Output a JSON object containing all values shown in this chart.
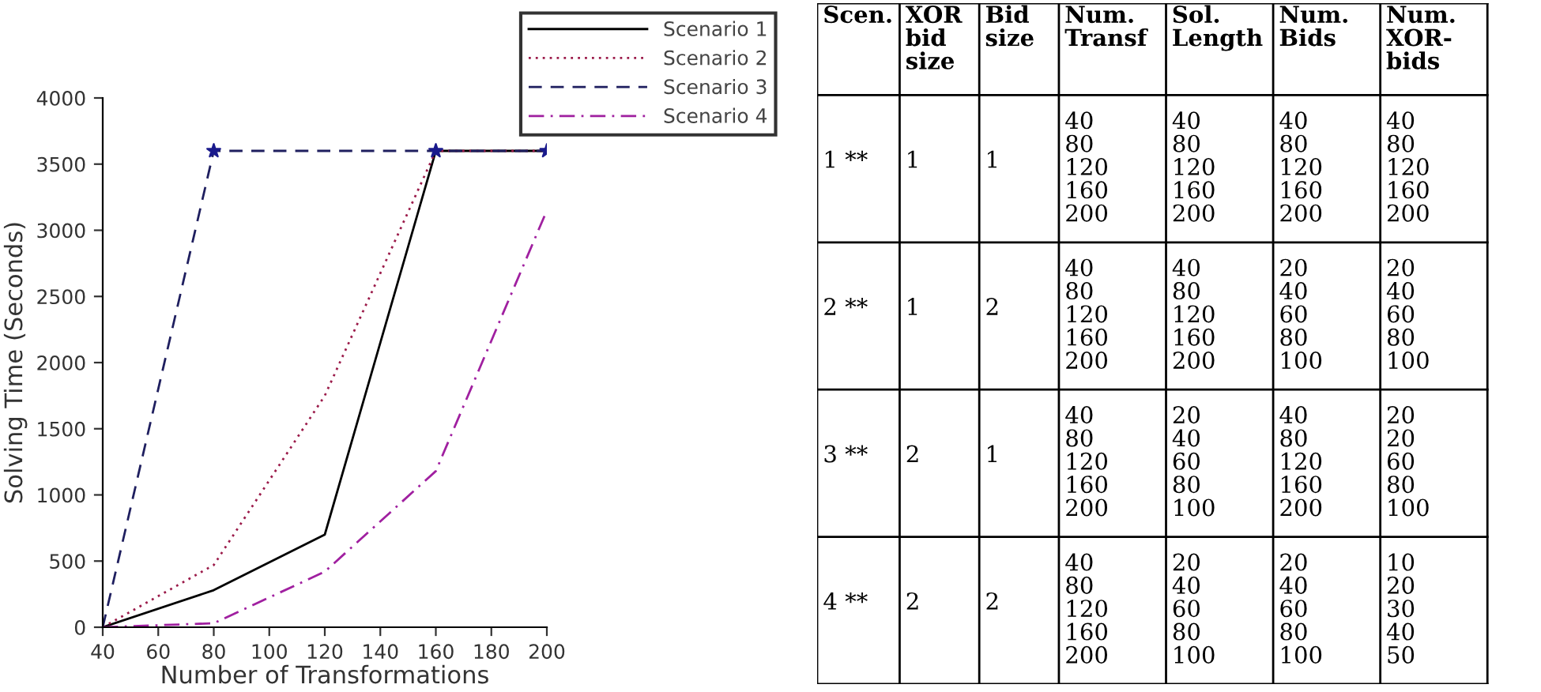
{
  "chart_data": [
    {
      "type": "line",
      "xlabel": "Number of Transformations",
      "ylabel": "Solving Time (Seconds)",
      "x": [
        40,
        80,
        120,
        160,
        200
      ],
      "xlim": [
        40,
        200
      ],
      "xticks": [
        40,
        60,
        80,
        100,
        120,
        140,
        160,
        180,
        200
      ],
      "ylim": [
        0,
        4000
      ],
      "yticks": [
        0,
        500,
        1000,
        1500,
        2000,
        2500,
        3000,
        3500,
        4000
      ],
      "grid": false,
      "legend": "top right",
      "series": [
        {
          "name": "Scenario 1",
          "color": "#000000",
          "line_style": "solid",
          "values": [
            0,
            280,
            700,
            3600,
            3600
          ]
        },
        {
          "name": "Scenario 2",
          "color": "#9b1b4a",
          "line_style": "dotted",
          "values": [
            0,
            470,
            1750,
            3600,
            3600
          ]
        },
        {
          "name": "Scenario 3",
          "color": "#1f1f5f",
          "line_style": "dashed",
          "values": [
            0,
            3600,
            3600,
            3600,
            3600
          ]
        },
        {
          "name": "Scenario 4",
          "color": "#a020a0",
          "line_style": "dashdot",
          "values": [
            0,
            30,
            420,
            1180,
            3150
          ]
        },
        {
          "type": "scatter",
          "marker": "star",
          "color": "#1a1a8c",
          "x": [
            80,
            160,
            200
          ],
          "values": [
            3600,
            3600,
            3600
          ]
        }
      ]
    },
    {
      "type": "other",
      "annotations": [
        "Scen.",
        "XOR\nbid\nsize",
        "Bid\nsize",
        "Num.\nTransf",
        "Sol.\nLength",
        "Num.\nBids",
        "Num.\nXOR-\nbids",
        "1 **",
        "1",
        "1",
        "40\n80\n120\n160\n200",
        "40\n80\n120\n160\n200",
        "40\n80\n120\n160\n200",
        "40\n80\n120\n160\n200",
        "2 **",
        "1",
        "2",
        "40\n80\n120\n160\n200",
        "40\n80\n120\n160\n200",
        "20\n40\n60\n80\n100",
        "20\n40\n60\n80\n100",
        "3 **",
        "2",
        "1",
        "40\n80\n120\n160\n200",
        "20\n40\n60\n80\n100",
        "40\n80\n120\n160\n200",
        "20\n20\n60\n80\n100",
        "4 **",
        "2",
        "2",
        "40\n80\n120\n160\n200",
        "20\n40\n60\n80\n100",
        "20\n40\n60\n80\n100",
        "10\n20\n30\n40\n50"
      ]
    }
  ]
}
